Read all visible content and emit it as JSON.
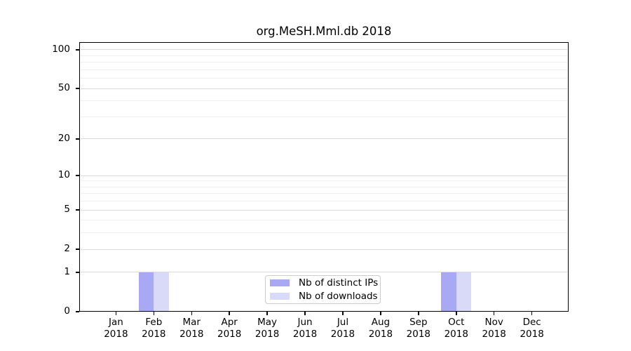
{
  "title": "org.MeSH.Mml.db 2018",
  "legend": {
    "items": [
      {
        "label": "Nb of distinct IPs",
        "color": "#a8a8f4"
      },
      {
        "label": "Nb of downloads",
        "color": "#d9d9f8"
      }
    ]
  },
  "chart_data": {
    "type": "bar",
    "title": "org.MeSH.Mml.db 2018",
    "categories": [
      "Jan 2018",
      "Feb 2018",
      "Mar 2018",
      "Apr 2018",
      "May 2018",
      "Jun 2018",
      "Jul 2018",
      "Aug 2018",
      "Sep 2018",
      "Oct 2018",
      "Nov 2018",
      "Dec 2018"
    ],
    "series": [
      {
        "name": "Nb of distinct IPs",
        "color": "#a8a8f4",
        "values": [
          0,
          1,
          0,
          0,
          0,
          0,
          0,
          0,
          0,
          1,
          0,
          0
        ]
      },
      {
        "name": "Nb of downloads",
        "color": "#d9d9f8",
        "values": [
          0,
          1,
          0,
          0,
          0,
          0,
          0,
          0,
          0,
          1,
          0,
          0
        ]
      }
    ],
    "xlabel": "",
    "ylabel": "",
    "y_axis": {
      "scale": "log10(value+1)",
      "tick_values": [
        0,
        1,
        2,
        5,
        10,
        20,
        50,
        100
      ],
      "minor_grid_values": [
        3,
        4,
        6,
        7,
        8,
        9,
        30,
        40,
        60,
        70,
        80,
        90
      ],
      "ylim": [
        0,
        115
      ]
    },
    "grid": "horizontal",
    "legend_position": "inside-bottom-center",
    "colors": {
      "major_grid": "#d9d9d9",
      "minor_grid": "#efefef",
      "spine": "#000000",
      "background": "#ffffff"
    }
  }
}
